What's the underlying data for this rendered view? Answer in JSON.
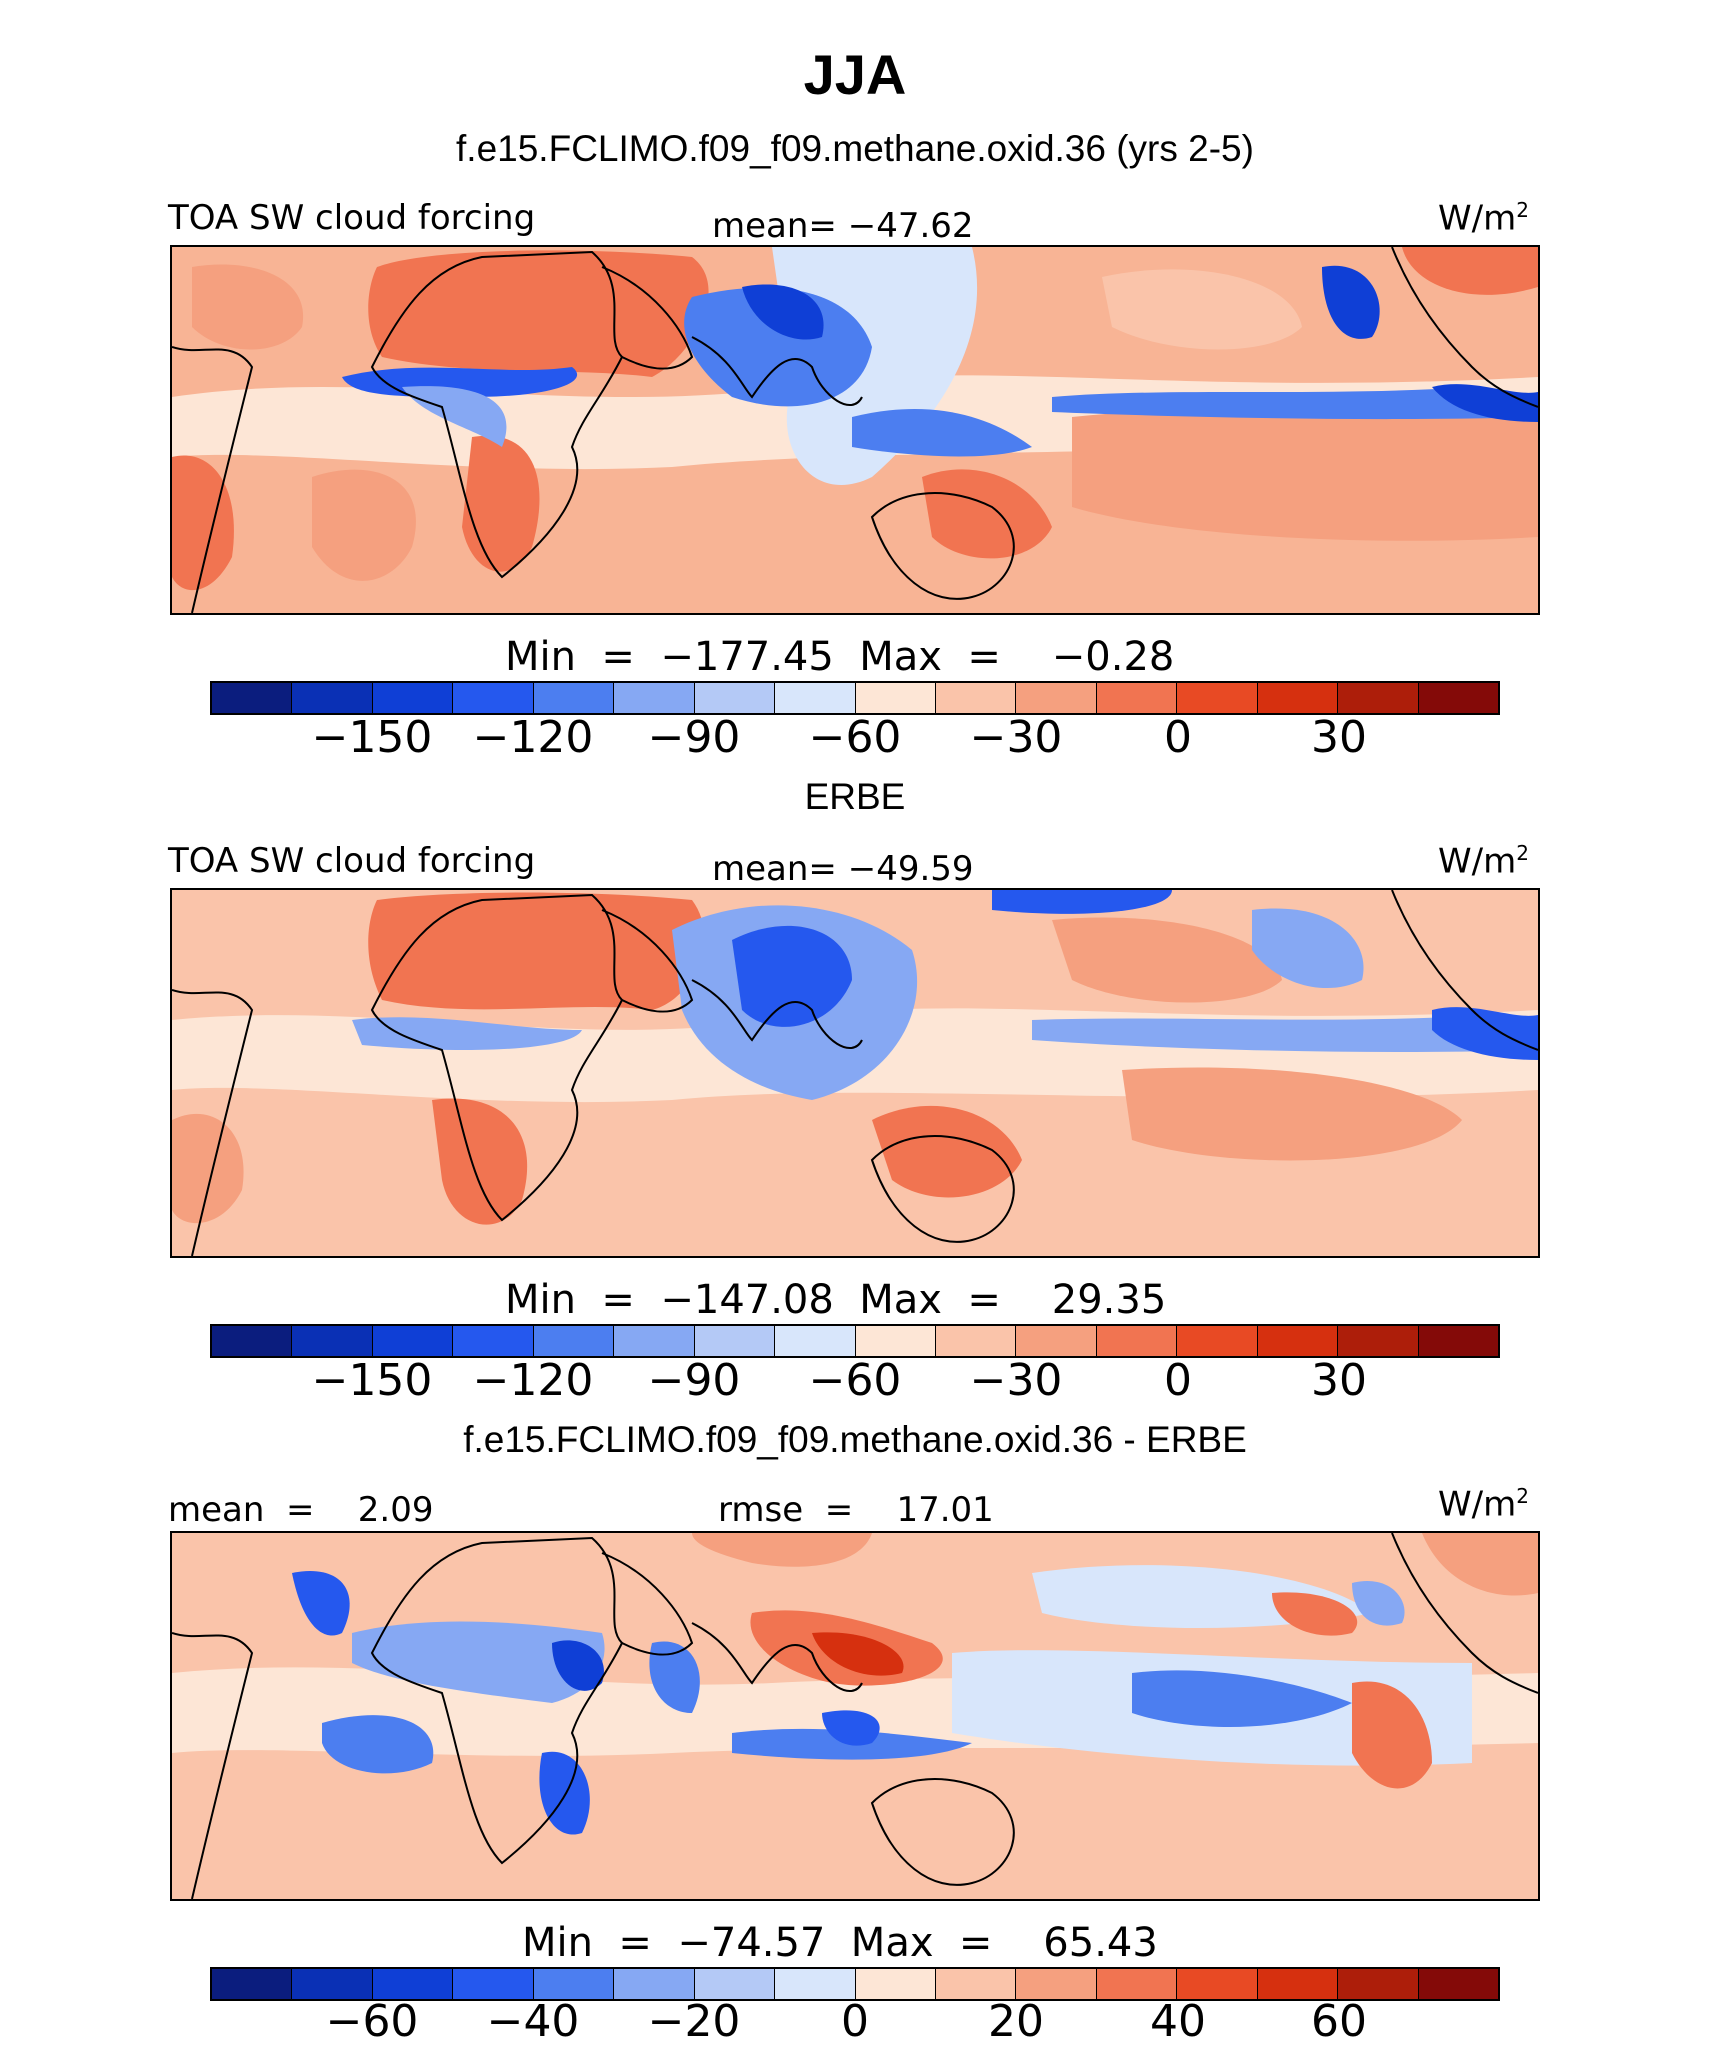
{
  "title": "JJA",
  "units_label": "W/m",
  "units_sup": "2",
  "colors": [
    "#0b1d7e",
    "#0a30b5",
    "#0f3fd6",
    "#2558ee",
    "#4c7ef0",
    "#86a8f3",
    "#b4c9f6",
    "#d8e6fb",
    "#fde6d6",
    "#fac4aa",
    "#f5a07f",
    "#f17451",
    "#e84a24",
    "#d6300f",
    "#ad1e0a",
    "#840a08"
  ],
  "panels": [
    {
      "heading": "f.e15.FCLIMO.f09_f09.methane.oxid.36 (yrs 2-5)",
      "left_label": "TOA SW cloud forcing",
      "center_label": "mean= −47.62",
      "min_max": "Min  =  −177.45  Max  =    −0.28",
      "ticks": [
        "−150",
        "−120",
        "−90",
        "−60",
        "−30",
        "0",
        "30"
      ]
    },
    {
      "heading": "ERBE",
      "left_label": "TOA SW cloud forcing",
      "center_label": "mean= −49.59",
      "min_max": "Min  =  −147.08  Max  =    29.35",
      "ticks": [
        "−150",
        "−120",
        "−90",
        "−60",
        "−30",
        "0",
        "30"
      ]
    },
    {
      "heading": "f.e15.FCLIMO.f09_f09.methane.oxid.36 - ERBE",
      "left_label": "mean  =    2.09",
      "center_label": "rmse  =    17.01",
      "min_max": "Min  =  −74.57  Max  =    65.43",
      "ticks": [
        "−60",
        "−40",
        "−20",
        "0",
        "20",
        "40",
        "60"
      ]
    }
  ]
}
